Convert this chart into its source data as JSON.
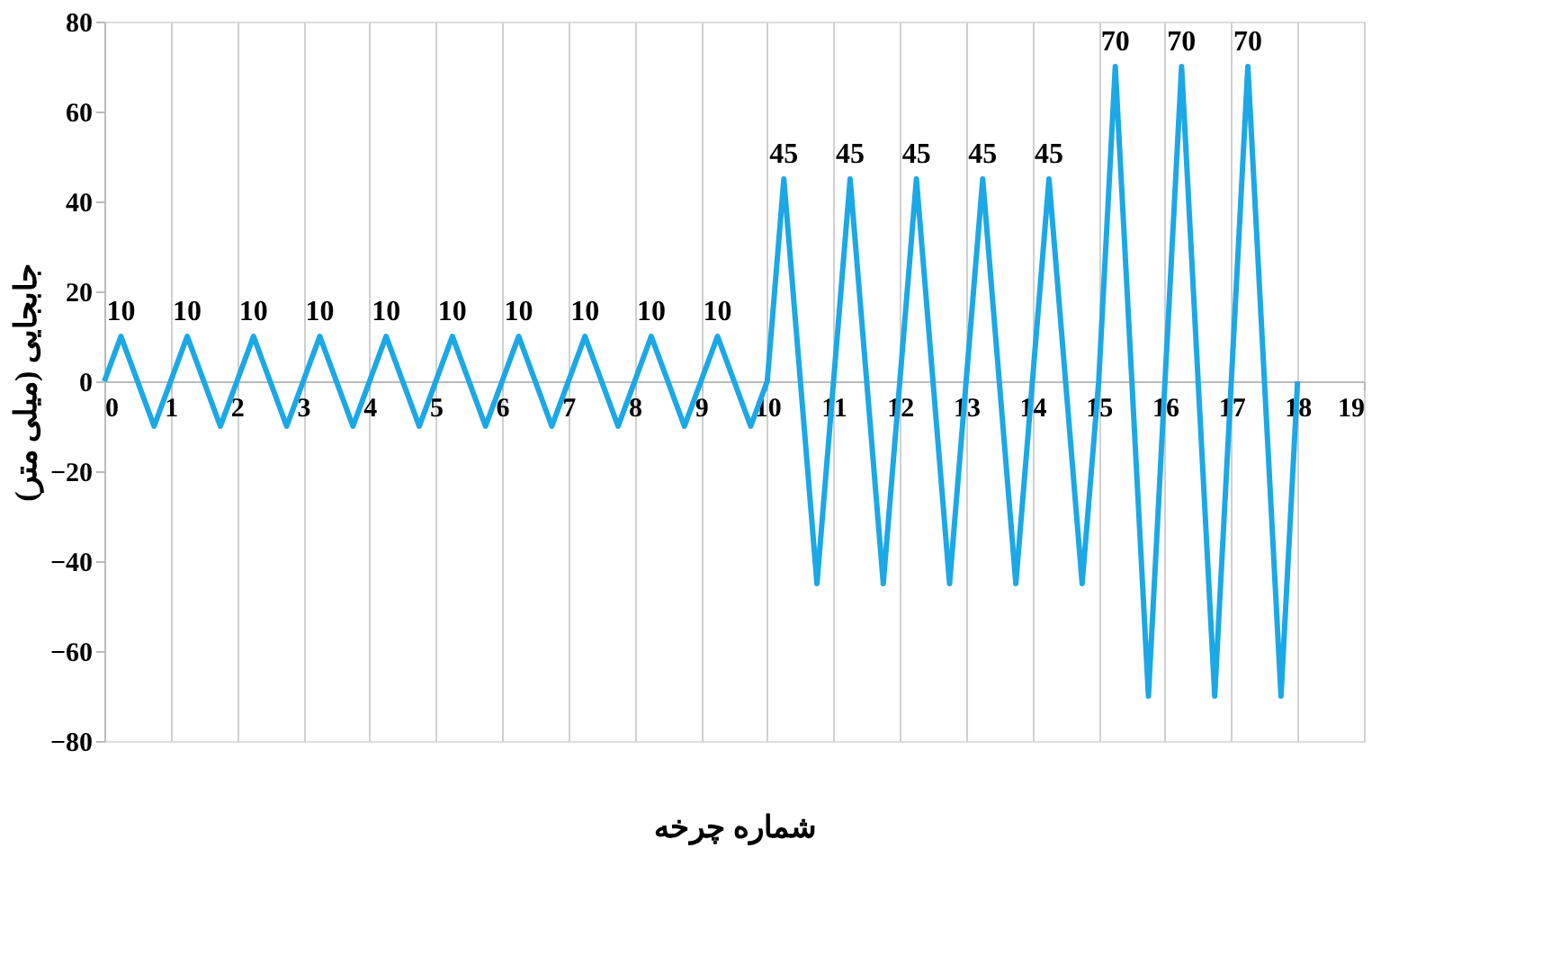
{
  "chart_data": {
    "type": "line",
    "xlabel": "شماره چرخه",
    "ylabel": "جابجایی (میلی متر)",
    "x": [
      0,
      0.25,
      0.5,
      0.75,
      1,
      1.25,
      1.5,
      1.75,
      2,
      2.25,
      2.5,
      2.75,
      3,
      3.25,
      3.5,
      3.75,
      4,
      4.25,
      4.5,
      4.75,
      5,
      5.25,
      5.5,
      5.75,
      6,
      6.25,
      6.5,
      6.75,
      7,
      7.25,
      7.5,
      7.75,
      8,
      8.25,
      8.5,
      8.75,
      9,
      9.25,
      9.5,
      9.75,
      10,
      10.25,
      10.5,
      10.75,
      11,
      11.25,
      11.5,
      11.75,
      12,
      12.25,
      12.5,
      12.75,
      13,
      13.25,
      13.5,
      13.75,
      14,
      14.25,
      14.5,
      14.75,
      15,
      15.25,
      15.5,
      15.75,
      16,
      16.25,
      16.5,
      16.75,
      17,
      17.25,
      17.5,
      17.75,
      18
    ],
    "series": [
      {
        "color": "#1ba8e6",
        "values": [
          0,
          10,
          0,
          -10,
          0,
          10,
          0,
          -10,
          0,
          10,
          0,
          -10,
          0,
          10,
          0,
          -10,
          0,
          10,
          0,
          -10,
          0,
          10,
          0,
          -10,
          0,
          10,
          0,
          -10,
          0,
          10,
          0,
          -10,
          0,
          10,
          0,
          -10,
          0,
          10,
          0,
          -10,
          0,
          45,
          0,
          -45,
          0,
          45,
          0,
          -45,
          0,
          45,
          0,
          -45,
          0,
          45,
          0,
          -45,
          0,
          45,
          0,
          -45,
          0,
          70,
          0,
          -70,
          0,
          70,
          0,
          -70,
          0,
          70,
          0,
          -70,
          0
        ],
        "value_labels": [
          null,
          "10",
          null,
          null,
          null,
          "10",
          null,
          null,
          null,
          "10",
          null,
          null,
          null,
          "10",
          null,
          null,
          null,
          "10",
          null,
          null,
          null,
          "10",
          null,
          null,
          null,
          "10",
          null,
          null,
          null,
          "10",
          null,
          null,
          null,
          "10",
          null,
          null,
          null,
          "10",
          null,
          null,
          null,
          "45",
          null,
          null,
          null,
          "45",
          null,
          null,
          null,
          "45",
          null,
          null,
          null,
          "45",
          null,
          null,
          null,
          "45",
          null,
          null,
          null,
          "70",
          null,
          null,
          null,
          "70",
          null,
          null,
          null,
          "70",
          null,
          null,
          null
        ]
      }
    ],
    "xlim": [
      0,
      19
    ],
    "xticks": [
      0,
      1,
      2,
      3,
      4,
      5,
      6,
      7,
      8,
      9,
      10,
      11,
      12,
      13,
      14,
      15,
      16,
      17,
      18,
      19
    ],
    "ylim": [
      -80,
      80
    ],
    "yticks": [
      -80,
      -60,
      -40,
      -20,
      0,
      20,
      40,
      60,
      80
    ],
    "grid": "x",
    "marker": "none",
    "line_style": "solid"
  }
}
